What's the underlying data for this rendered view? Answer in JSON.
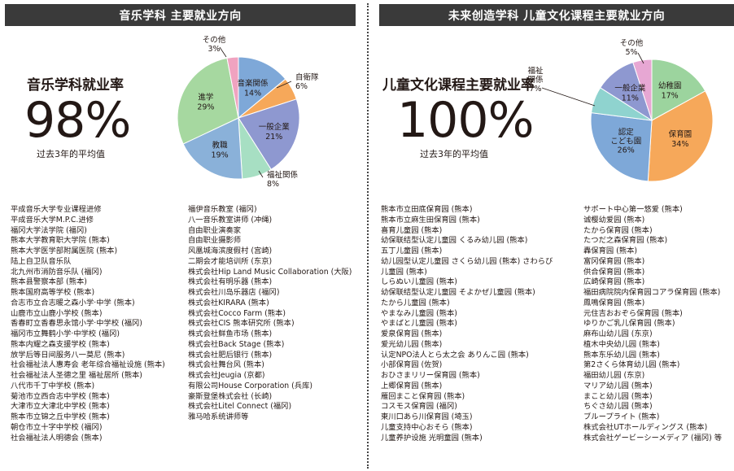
{
  "left": {
    "header": "音乐学科 主要就业方向",
    "rate_label": "音乐学科就业率",
    "rate_value": "98%",
    "rate_sub": "过去3年的平均值",
    "chart_data": {
      "type": "pie",
      "slices": [
        {
          "label": "音楽関係",
          "value": 14,
          "text": "14%",
          "color": "#7ea8d8"
        },
        {
          "label": "自衛隊",
          "value": 6,
          "text": "6%",
          "color": "#f6a85a"
        },
        {
          "label": "一般企業",
          "value": 21,
          "text": "21%",
          "color": "#8e98d0"
        },
        {
          "label": "福祉関係",
          "value": 8,
          "text": "8%",
          "color": "#a7dfc3"
        },
        {
          "label": "教職",
          "value": 19,
          "text": "19%",
          "color": "#8ab1d9"
        },
        {
          "label": "進学",
          "value": 29,
          "text": "29%",
          "color": "#a6d8a0"
        },
        {
          "label": "その他",
          "value": 3,
          "text": "3%",
          "color": "#f0a3c0"
        }
      ]
    },
    "list_col1": [
      "平成音乐大学专业课程进修",
      "平成音乐大学M.P.C.进修",
      "福冈大学法学院 (福冈)",
      "熊本大学教育职大学院 (熊本)",
      "熊本大学医学部附属医院 (熊本)",
      "陆上自卫队音乐队",
      "北九州市消防音乐队 (福冈)",
      "熊本县警察本部 (熊本)",
      "熊本国府高等学校 (熊本)",
      "合志市立合志暖之森小学·中学 (熊本)",
      "山鹿市立山鹿小学校 (熊本)",
      "香春町立香春思永馆小学·中学校 (福冈)",
      "福冈市立舞鹤小学·中学校 (福冈)",
      "熊本内耀之森支援学校 (熊本)",
      "放学后等日间服务八一莫尼 (熊本)",
      "社会福祉法人惠寿会 老年综合福祉设施 (熊本)",
      "社会福祉法人圣德之里 福祉居所 (熊本)",
      "八代市千丁中学校 (熊本)",
      "菊池市立西合志中学校 (熊本)",
      "大津市立大津北中学校 (熊本)",
      "熊本市立锦之丘中学校 (熊本)",
      "朝仓市立十字中学校 (福冈)",
      "社会福祉法人明德会 (熊本)"
    ],
    "list_col2": [
      "福伊音乐教室 (福冈)",
      "八一音乐教室讲师 (冲绳)",
      "自由职业演奏家",
      "自由职业摄影师",
      "风凰城海滨度假村 (宫崎)",
      "二期会才能培训所 (东京)",
      "株式会社Hip Land Music Collaboration (大阪)",
      "株式会社有明乐器 (熊本)",
      "株式会社川岛乐器店 (福冈)",
      "株式会社KIRARA (熊本)",
      "株式会社Cocco Farm (熊本)",
      "株式会社CIS 熊本研究所 (熊本)",
      "株式会社鲜鱼市场 (熊本)",
      "株式会社Back Stage (熊本)",
      "株式会社肥后银行 (熊本)",
      "株式会社舞台风 (熊本)",
      "株式会社Jeugia (京都)",
      "有限公司House Corporation (兵库)",
      "豪斯登堡株式会社 (长崎)",
      "株式会社Litel Connect (福冈)",
      "雅马哈系统讲师等"
    ]
  },
  "right": {
    "header": "未来创造学科 儿童文化课程主要就业方向",
    "rate_label": "儿童文化课程主要就业率",
    "rate_value": "100%",
    "rate_sub": "过去3年的平均值",
    "chart_data": {
      "type": "pie",
      "slices": [
        {
          "label": "幼稚園",
          "value": 17,
          "text": "17%",
          "color": "#9cd49e"
        },
        {
          "label": "保育園",
          "value": 34,
          "text": "34%",
          "color": "#f6a85a"
        },
        {
          "label": "認定こども園",
          "value": 26,
          "text": "26%",
          "color": "#7ea8d8"
        },
        {
          "label": "福祉関係",
          "value": 7,
          "text": "7%",
          "color": "#8fd3cf"
        },
        {
          "label": "一般企業",
          "value": 11,
          "text": "11%",
          "color": "#8e98d0"
        },
        {
          "label": "その他",
          "value": 5,
          "text": "5%",
          "color": "#e7a7d3"
        }
      ]
    },
    "list_col1": [
      "熊本市立田底保育园 (熊本)",
      "熊本市立麻生田保育园 (熊本)",
      "喜育儿童园 (熊本)",
      "幼保联结型认定儿童园 くるみ幼儿园 (熊本)",
      "五丁儿童园 (熊本)",
      "幼儿园型认定儿童园 さくら幼儿园 (熊本) さわらび",
      "儿童园 (熊本)",
      "しらぬい儿童园 (熊本)",
      "幼保联结型认定儿童园 そよかぜ儿童园 (熊本)",
      "たから儿童园 (熊本)",
      "やまなみ儿童园 (熊本)",
      "やまばと儿童园 (熊本)",
      "爱泉保育园 (熊本)",
      "爱光幼儿园 (熊本)",
      "认定NPO法人とら太之会 ありんこ园 (熊本)",
      "小部保育园 (佐贺)",
      "おひさまリリー保育园 (熊本)",
      "上郷保育园 (熊本)",
      "雁回まこと保育园 (熊本)",
      "コスモス保育园 (福冈)",
      "東川口あら川保育园 (埼玉)",
      "儿童支持中心おそら (熊本)",
      "儿童养护设施 光明童园 (熊本)"
    ],
    "list_col2": [
      "サポート中心第一悠爱 (熊本)",
      "诚樱幼爱园 (熊本)",
      "たから保育园 (熊本)",
      "たつだ之森保育园 (熊本)",
      "轟保育园 (熊本)",
      "富冈保育园 (熊本)",
      "供合保育园 (熊本)",
      "広崎保育园 (熊本)",
      "福田病院院内保育园コアラ保育园 (熊本)",
      "鳳鳴保育园 (熊本)",
      "元住吉おおぞら保育园 (熊本)",
      "ゆりかご乳儿保育园 (熊本)",
      "麻布山幼儿园 (东京)",
      "植木中央幼儿园 (熊本)",
      "熊本东乐幼儿园 (熊本)",
      "第2さくら体育幼儿园 (熊本)",
      "福田幼儿园 (东京)",
      "マリア幼儿园 (熊本)",
      "まこと幼儿园 (熊本)",
      "ちぐさ幼儿园 (熊本)",
      "ブループライト (熊本)",
      "株式会社UTホールディングス (熊本)",
      "株式会社ゲービーシーメディア (福冈) 等"
    ]
  }
}
